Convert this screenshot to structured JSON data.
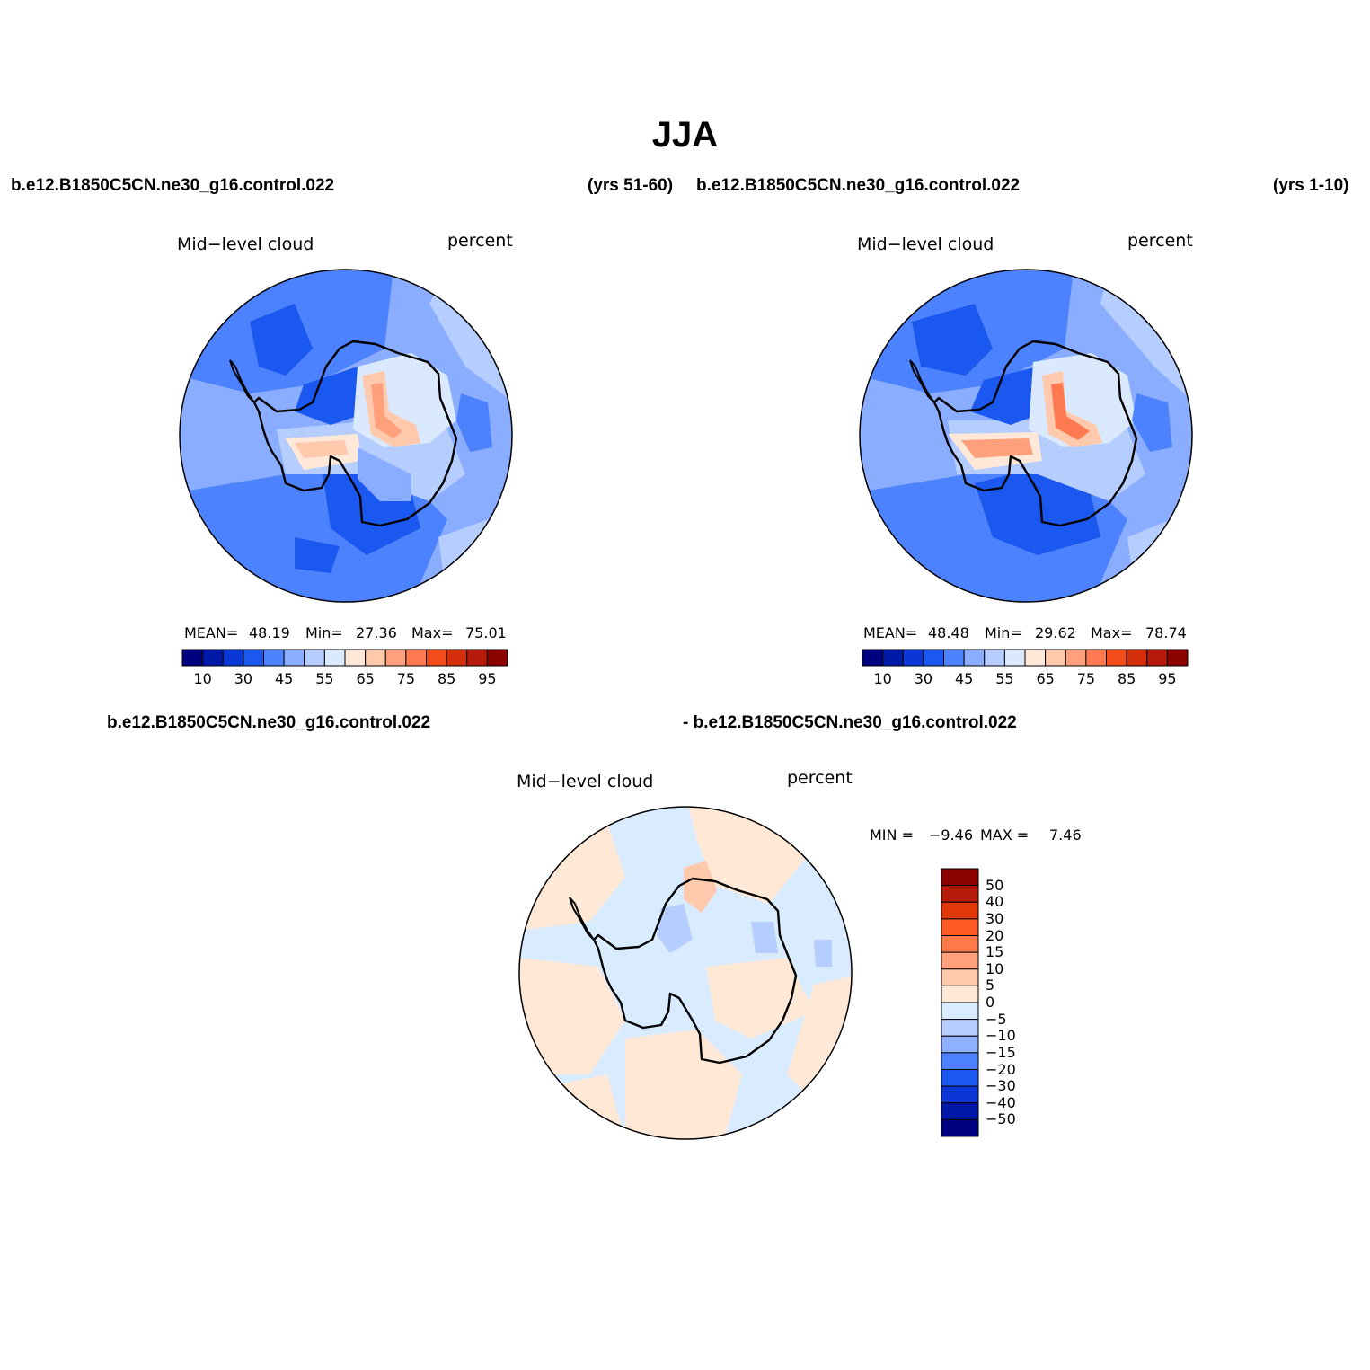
{
  "title": "JJA",
  "panels": [
    {
      "case_name": "b.e12.B1850C5CN.ne30_g16.control.022",
      "years": "(yrs 51-60)",
      "variable": "Mid−level cloud",
      "units": "percent",
      "stats": {
        "mean_label": "MEAN=",
        "mean": "48.19",
        "min_label": "Min=",
        "min": "27.36",
        "max_label": "Max=",
        "max": "75.01"
      }
    },
    {
      "case_name": "b.e12.B1850C5CN.ne30_g16.control.022",
      "years": "(yrs 1-10)",
      "variable": "Mid−level cloud",
      "units": "percent",
      "stats": {
        "mean_label": "MEAN=",
        "mean": "48.48",
        "min_label": "Min=",
        "min": "29.62",
        "max_label": "Max=",
        "max": "78.74"
      }
    }
  ],
  "difference": {
    "case_a": "b.e12.B1850C5CN.ne30_g16.control.022",
    "case_b": "- b.e12.B1850C5CN.ne30_g16.control.022",
    "variable": "Mid−level cloud",
    "units": "percent",
    "stats": {
      "min_label": "MIN =",
      "min": "−9.46",
      "max_label": "MAX =",
      "max": "7.46"
    }
  },
  "colorbar_main": {
    "colors": [
      "#000080",
      "#0018a8",
      "#0a37d6",
      "#1b58f0",
      "#4d82ff",
      "#8aadff",
      "#b5cdff",
      "#dbe9ff",
      "#ffe8d8",
      "#ffc9ae",
      "#ffa07c",
      "#ff7a50",
      "#f44d1c",
      "#d52e0a",
      "#b51a0a",
      "#8b0000"
    ],
    "labels": [
      "10",
      "30",
      "45",
      "55",
      "65",
      "75",
      "85",
      "95"
    ]
  },
  "colorbar_diff": {
    "colors": [
      "#8b0000",
      "#b51a0a",
      "#e23808",
      "#ff5a24",
      "#ff7a48",
      "#ffa07c",
      "#ffc9ae",
      "#ffe9d6",
      "#d9ecff",
      "#b5cdff",
      "#8fb0ff",
      "#4d82ff",
      "#1b58f0",
      "#0a37d6",
      "#0018a8",
      "#000080"
    ],
    "labels": [
      "50",
      "40",
      "30",
      "20",
      "15",
      "10",
      "5",
      "0",
      "−5",
      "−10",
      "−15",
      "−20",
      "−30",
      "−40",
      "−50"
    ]
  }
}
